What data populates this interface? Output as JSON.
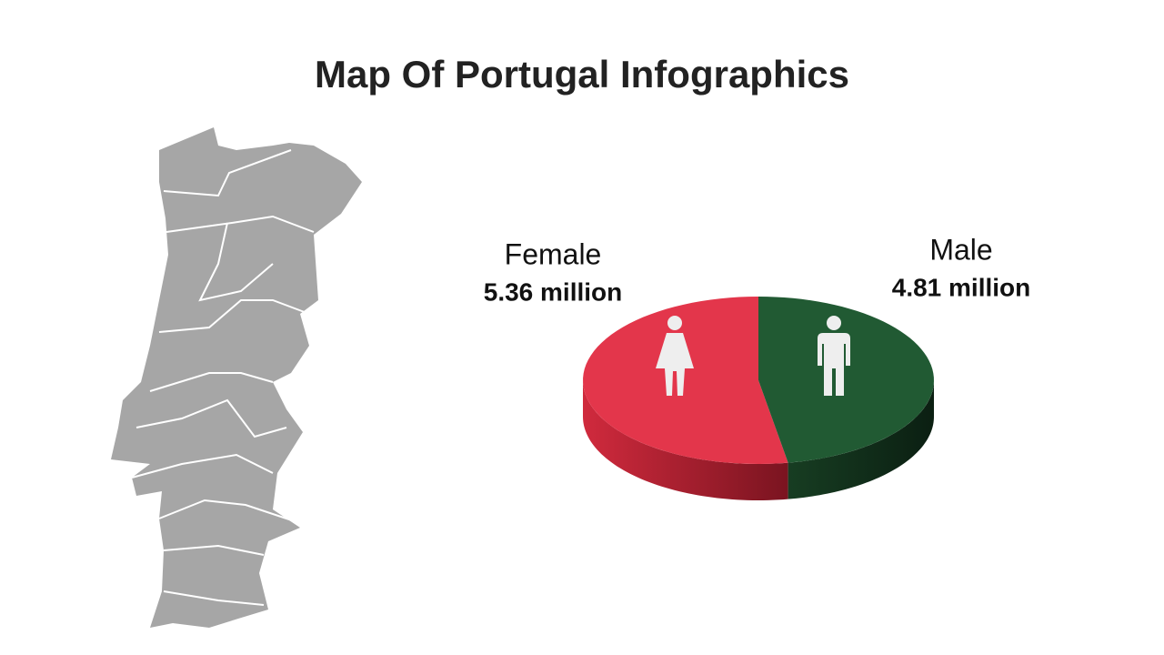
{
  "chart_data": {
    "type": "pie",
    "title": "Map Of Portugal Infographics",
    "categories": [
      "Female",
      "Male"
    ],
    "values": [
      5.36,
      4.81
    ],
    "value_labels": [
      "5.36 million",
      "4.81 million"
    ],
    "colors": [
      "#e3364b",
      "#215a33"
    ]
  }
}
